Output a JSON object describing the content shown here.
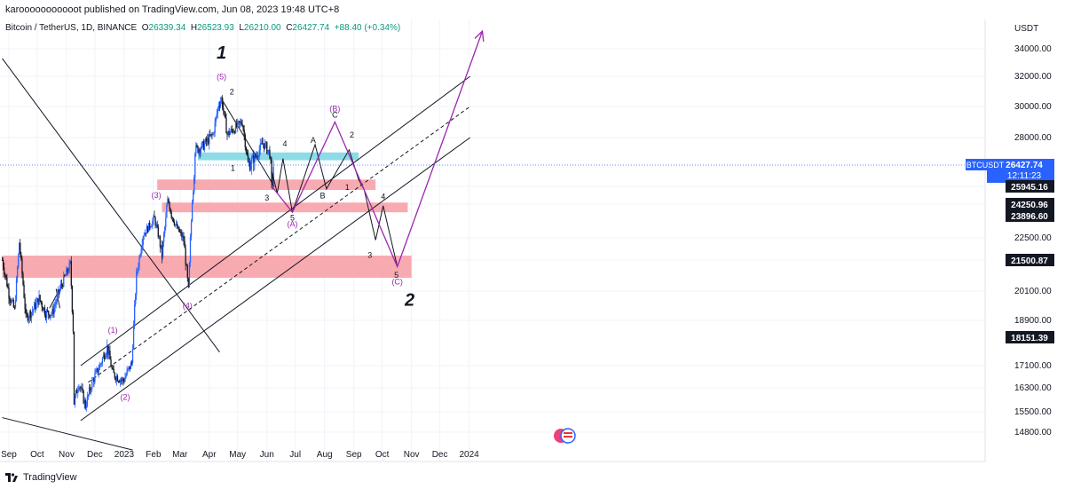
{
  "header": {
    "publisher": "karooooooooooot published on TradingView.com, Jun 08, 2023 19:48 UTC+8"
  },
  "legend": {
    "symbol": "Bitcoin / TetherUS, 1D, BINANCE",
    "o_key": "O",
    "o_val": "26339.34",
    "h_key": "H",
    "h_val": "26523.93",
    "l_key": "L",
    "l_val": "26210.00",
    "c_key": "C",
    "c_val": "26427.74",
    "change": "+88.40 (+0.34%)"
  },
  "axis": {
    "unit": "USDT"
  },
  "footer": {
    "brand": "TradingView"
  },
  "colors": {
    "up": "#2962ff",
    "down": "#131722",
    "zone_red": "#f7a1a8",
    "zone_cyan": "#7fd8e6",
    "wave_purple": "#9c27b0",
    "price_tag": "#2962ff"
  },
  "chart_data": {
    "type": "candlestick",
    "ylim": [
      14000,
      35500
    ],
    "y_ticks": [
      14800,
      15500,
      16300,
      17100,
      18900,
      20100,
      21500,
      22500,
      24250,
      25945,
      28000,
      30000,
      32000,
      34000
    ],
    "y_tick_labels": [
      "14800.00",
      "15500.00",
      "16300.00",
      "17100.00",
      "18900.00",
      "20100.00",
      "21500.00",
      "22500.00",
      "24250.00",
      "25945.00",
      "28000.00",
      "30000.00",
      "32000.00",
      "34000.00"
    ],
    "x_labels": [
      "Sep",
      "Oct",
      "Nov",
      "Dec",
      "2023",
      "Feb",
      "Mar",
      "Apr",
      "May",
      "Jun",
      "Jul",
      "Aug",
      "Sep",
      "Oct",
      "Nov",
      "Dec",
      "2024"
    ],
    "price_tags": [
      {
        "name": "BTCUSDT",
        "value": 26427.74,
        "label": "26427.74",
        "sub": "12:11:23",
        "kind": "last"
      },
      {
        "value": 25945.16,
        "label": "25945.16",
        "kind": "level"
      },
      {
        "value": 24250.96,
        "label": "24250.96",
        "kind": "level"
      },
      {
        "value": 23896.6,
        "label": "23896.60",
        "kind": "level"
      },
      {
        "value": 21500.87,
        "label": "21500.87",
        "kind": "level"
      },
      {
        "value": 18151.39,
        "label": "18151.39",
        "kind": "level"
      }
    ],
    "price_path": [
      [
        "2022-08-25",
        21500
      ],
      [
        "2022-09-01",
        20000
      ],
      [
        "2022-09-07",
        19300
      ],
      [
        "2022-09-12",
        22300
      ],
      [
        "2022-09-19",
        19000
      ],
      [
        "2022-09-26",
        19300
      ],
      [
        "2022-10-03",
        19800
      ],
      [
        "2022-10-10",
        19200
      ],
      [
        "2022-10-17",
        19200
      ],
      [
        "2022-10-25",
        20200
      ],
      [
        "2022-10-30",
        20700
      ],
      [
        "2022-11-05",
        21300
      ],
      [
        "2022-11-08",
        18500
      ],
      [
        "2022-11-09",
        15800
      ],
      [
        "2022-11-14",
        16500
      ],
      [
        "2022-11-21",
        15700
      ],
      [
        "2022-11-28",
        16500
      ],
      [
        "2022-12-05",
        17000
      ],
      [
        "2022-12-14",
        17800
      ],
      [
        "2022-12-20",
        16800
      ],
      [
        "2022-12-31",
        16550
      ],
      [
        "2023-01-09",
        17200
      ],
      [
        "2023-01-14",
        20800
      ],
      [
        "2023-01-21",
        22700
      ],
      [
        "2023-02-02",
        23700
      ],
      [
        "2023-02-10",
        21700
      ],
      [
        "2023-02-16",
        24600
      ],
      [
        "2023-02-25",
        23200
      ],
      [
        "2023-03-05",
        22400
      ],
      [
        "2023-03-10",
        20100
      ],
      [
        "2023-03-14",
        24700
      ],
      [
        "2023-03-17",
        27300
      ],
      [
        "2023-03-25",
        27500
      ],
      [
        "2023-04-05",
        28200
      ],
      [
        "2023-04-11",
        30200
      ],
      [
        "2023-04-14",
        30500
      ],
      [
        "2023-04-20",
        28200
      ],
      [
        "2023-04-26",
        28500
      ],
      [
        "2023-05-06",
        29000
      ],
      [
        "2023-05-12",
        26500
      ],
      [
        "2023-05-20",
        26900
      ],
      [
        "2023-05-28",
        27700
      ],
      [
        "2023-06-04",
        27100
      ],
      [
        "2023-06-06",
        25800
      ],
      [
        "2023-06-08",
        26427
      ]
    ],
    "zones": [
      {
        "color": "red",
        "from": 20700,
        "to": 21700,
        "x0": "2022-08-25",
        "x1": "2023-11-01"
      },
      {
        "color": "red",
        "from": 24000,
        "to": 24400,
        "x0": "2023-02-10",
        "x1": "2023-10-28"
      },
      {
        "color": "red",
        "from": 25600,
        "to": 26100,
        "x0": "2023-02-05",
        "x1": "2023-09-24"
      },
      {
        "color": "cyan",
        "from": 26700,
        "to": 27150,
        "x0": "2023-03-20",
        "x1": "2023-09-06"
      }
    ],
    "annotations": [
      {
        "text": "1",
        "x": "2023-04-14",
        "y": 33300,
        "style": "major"
      },
      {
        "text": "2",
        "x": "2023-10-30",
        "y": 19500,
        "style": "major"
      },
      {
        "text": "(5)",
        "x": "2023-04-14",
        "y": 31800,
        "style": "purple"
      },
      {
        "text": "(3)",
        "x": "2023-02-04",
        "y": 24850,
        "style": "purple"
      },
      {
        "text": "(1)",
        "x": "2022-12-20",
        "y": 18350,
        "style": "purple"
      },
      {
        "text": "(2)",
        "x": "2023-01-02",
        "y": 15900,
        "style": "purple"
      },
      {
        "text": "(4)",
        "x": "2023-03-09",
        "y": 19400,
        "style": "purple"
      },
      {
        "text": "(A)",
        "x": "2023-06-28",
        "y": 23200,
        "style": "purple"
      },
      {
        "text": "(B)",
        "x": "2023-08-12",
        "y": 29700,
        "style": "purple"
      },
      {
        "text": "(C)",
        "x": "2023-10-17",
        "y": 20400,
        "style": "purple"
      },
      {
        "text": "2",
        "x": "2023-04-25",
        "y": 30800,
        "style": "small"
      },
      {
        "text": "1",
        "x": "2023-04-26",
        "y": 26300,
        "style": "small"
      },
      {
        "text": "4",
        "x": "2023-06-20",
        "y": 27500,
        "style": "small"
      },
      {
        "text": "3",
        "x": "2023-06-01",
        "y": 24600,
        "style": "small"
      },
      {
        "text": "5",
        "x": "2023-06-28",
        "y": 23600,
        "style": "small"
      },
      {
        "text": "A",
        "x": "2023-07-20",
        "y": 27700,
        "style": "small"
      },
      {
        "text": "B",
        "x": "2023-07-30",
        "y": 24800,
        "style": "small"
      },
      {
        "text": "C",
        "x": "2023-08-12",
        "y": 29300,
        "style": "small"
      },
      {
        "text": "2",
        "x": "2023-08-30",
        "y": 28000,
        "style": "small"
      },
      {
        "text": "1",
        "x": "2023-08-25",
        "y": 25600,
        "style": "small"
      },
      {
        "text": "4",
        "x": "2023-10-02",
        "y": 24700,
        "style": "small"
      },
      {
        "text": "3",
        "x": "2023-09-18",
        "y": 21600,
        "style": "small"
      },
      {
        "text": "5",
        "x": "2023-10-16",
        "y": 20700,
        "style": "small"
      }
    ],
    "trendlines": [
      {
        "style": "solid",
        "points": [
          [
            "2022-08-25",
            33300
          ],
          [
            "2023-04-12",
            17600
          ]
        ]
      },
      {
        "style": "solid",
        "points": [
          [
            "2022-08-25",
            15300
          ],
          [
            "2023-01-10",
            14100
          ]
        ]
      },
      {
        "style": "solid",
        "points": [
          [
            "2022-11-16",
            17100
          ],
          [
            "2024-01-02",
            32000
          ]
        ]
      },
      {
        "style": "solid",
        "points": [
          [
            "2022-11-16",
            15200
          ],
          [
            "2024-01-02",
            28000
          ]
        ]
      },
      {
        "style": "dashed",
        "points": [
          [
            "2022-11-24",
            16500
          ],
          [
            "2024-01-02",
            30000
          ]
        ]
      },
      {
        "style": "solid",
        "points": [
          [
            "2022-10-21",
            20200
          ],
          [
            "2022-10-25",
            19400
          ]
        ]
      },
      {
        "style": "solid",
        "points": [
          [
            "2022-10-14",
            19400
          ],
          [
            "2022-10-25",
            20200
          ]
        ]
      },
      {
        "style": "solid",
        "points": [
          [
            "2023-04-15",
            30400
          ],
          [
            "2023-06-09",
            25900
          ]
        ]
      }
    ],
    "wave_black": [
      [
        "2023-06-06",
        26300
      ],
      [
        "2023-06-12",
        25300
      ],
      [
        "2023-06-18",
        26800
      ],
      [
        "2023-06-28",
        24000
      ],
      [
        "2023-07-22",
        27600
      ],
      [
        "2023-08-03",
        25700
      ],
      [
        "2023-08-27",
        27300
      ],
      [
        "2023-09-06",
        26100
      ],
      [
        "2023-09-12",
        25600
      ],
      [
        "2023-09-24",
        22400
      ],
      [
        "2023-10-02",
        24200
      ],
      [
        "2023-10-17",
        21200
      ]
    ],
    "wave_purple": [
      [
        "2023-06-06",
        25950
      ],
      [
        "2023-06-28",
        24000
      ],
      [
        "2023-08-12",
        29000
      ],
      [
        "2023-10-17",
        21200
      ],
      [
        "2024-01-15",
        35200
      ]
    ]
  }
}
